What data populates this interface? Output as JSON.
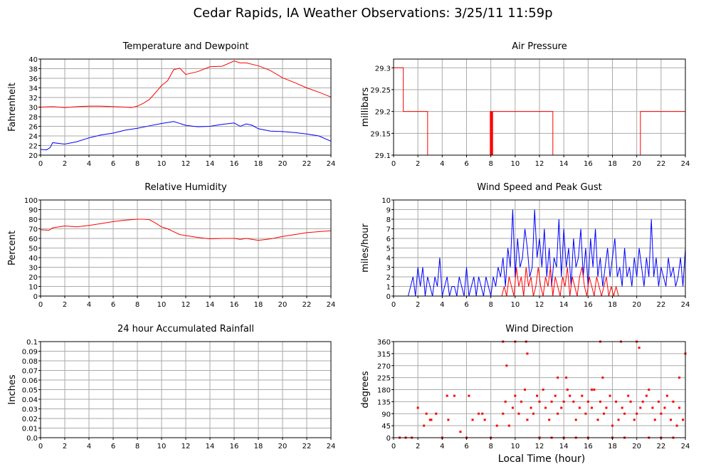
{
  "page": {
    "title": "Cedar Rapids, IA Weather Observations: 3/25/11 11:59p",
    "x_axis_label": "Local Time (hour)"
  },
  "colors": {
    "red": "#ff0000",
    "blue": "#0000ff",
    "grid": "#aaaaaa",
    "axis": "#000000"
  },
  "chart_data": [
    {
      "id": "temp",
      "type": "line",
      "title": "Temperature and Dewpoint",
      "ylabel": "Fahrenheit",
      "xlim": [
        0,
        24
      ],
      "ylim": [
        20,
        40
      ],
      "xticks": [
        0,
        2,
        4,
        6,
        8,
        10,
        12,
        14,
        16,
        18,
        20,
        22,
        24
      ],
      "yticks": [
        20,
        22,
        24,
        26,
        28,
        30,
        32,
        34,
        36,
        38,
        40
      ],
      "grid": true,
      "series": [
        {
          "color": "red",
          "x": [
            0,
            1,
            2,
            3,
            4,
            5,
            6,
            7,
            7.5,
            8,
            8.5,
            9,
            9.5,
            10,
            10.5,
            11,
            11.5,
            12,
            13,
            14,
            15,
            16,
            16.5,
            17,
            18,
            19,
            20,
            21,
            22,
            23,
            24
          ],
          "y": [
            30,
            30.1,
            29.9,
            30.1,
            30.2,
            30.2,
            30.1,
            30,
            29.9,
            30.2,
            30.8,
            31.6,
            33,
            34.5,
            35.5,
            37.8,
            38.1,
            36.8,
            37.4,
            38.4,
            38.5,
            39.6,
            39.2,
            39.2,
            38.6,
            37.6,
            36.1,
            35.1,
            34,
            33.1,
            32.1
          ]
        },
        {
          "color": "blue",
          "x": [
            0,
            0.5,
            0.8,
            1,
            2,
            3,
            4,
            5,
            6,
            7,
            8,
            9,
            10,
            10.5,
            11,
            11.5,
            12,
            13,
            14,
            15,
            16,
            16.5,
            17,
            17.5,
            18,
            19,
            20,
            21,
            22,
            23,
            24
          ],
          "y": [
            21.2,
            21.1,
            21.6,
            22.6,
            22.3,
            22.8,
            23.6,
            24.2,
            24.6,
            25.2,
            25.6,
            26.1,
            26.6,
            26.8,
            27,
            26.6,
            26.2,
            25.9,
            26,
            26.4,
            26.7,
            26,
            26.5,
            26.2,
            25.5,
            25,
            24.9,
            24.7,
            24.4,
            24,
            22.9
          ]
        }
      ]
    },
    {
      "id": "pressure",
      "type": "line",
      "title": "Air Pressure",
      "ylabel": "millibars",
      "xlim": [
        0,
        24
      ],
      "ylim": [
        29.1,
        29.32
      ],
      "xticks": [
        0,
        2,
        4,
        6,
        8,
        10,
        12,
        14,
        16,
        18,
        20,
        22,
        24
      ],
      "yticks": [
        29.1,
        29.15,
        29.2,
        29.25,
        29.3
      ],
      "ytick_labels": [
        "29.1",
        "29.15",
        "29.2",
        "29.25",
        "29.3"
      ],
      "grid": true,
      "series": [
        {
          "color": "red",
          "step": true,
          "x": [
            0,
            0.8,
            0.8,
            2.8,
            2.8,
            7.95,
            7.95,
            8.0,
            8.0,
            8.05,
            8.05,
            8.1,
            8.1,
            8.15,
            8.15,
            13.1,
            13.1,
            13.2,
            13.2,
            20.3,
            20.3,
            24
          ],
          "y": [
            29.3,
            29.3,
            29.2,
            29.2,
            29.1,
            29.1,
            29.2,
            29.2,
            29.1,
            29.1,
            29.2,
            29.2,
            29.1,
            29.1,
            29.2,
            29.2,
            29.1,
            29.1,
            29.1,
            29.1,
            29.2,
            29.2
          ]
        }
      ]
    },
    {
      "id": "rh",
      "type": "line",
      "title": "Relative Humidity",
      "ylabel": "Percent",
      "xlim": [
        0,
        24
      ],
      "ylim": [
        0,
        100
      ],
      "xticks": [
        0,
        2,
        4,
        6,
        8,
        10,
        12,
        14,
        16,
        18,
        20,
        22,
        24
      ],
      "yticks": [
        0,
        10,
        20,
        30,
        40,
        50,
        60,
        70,
        80,
        90,
        100
      ],
      "grid": true,
      "series": [
        {
          "color": "red",
          "x": [
            0,
            0.7,
            1,
            2,
            3,
            4,
            5,
            6,
            7,
            8,
            8.5,
            9,
            9.5,
            10,
            10.5,
            11,
            11.5,
            12,
            13,
            14,
            15,
            16,
            16.5,
            17,
            18,
            19,
            20,
            21,
            22,
            23,
            24
          ],
          "y": [
            69,
            68.5,
            71,
            73,
            72,
            73.5,
            75.5,
            77.5,
            79,
            80,
            80,
            79.5,
            76,
            72,
            70,
            67,
            64,
            63,
            61,
            59.5,
            60,
            60,
            59,
            60,
            58,
            59.5,
            62,
            64,
            66,
            67,
            68
          ]
        }
      ]
    },
    {
      "id": "wind",
      "type": "line",
      "title": "Wind Speed and Peak Gust",
      "ylabel": "miles/hour",
      "xlim": [
        0,
        24
      ],
      "ylim": [
        0,
        10
      ],
      "xticks": [
        0,
        2,
        4,
        6,
        8,
        10,
        12,
        14,
        16,
        18,
        20,
        22,
        24
      ],
      "yticks": [
        0,
        1,
        2,
        3,
        4,
        5,
        6,
        7,
        8,
        9,
        10
      ],
      "grid": true,
      "series": [
        {
          "color": "blue",
          "x": [
            0,
            1.2,
            1.4,
            1.6,
            1.8,
            2.0,
            2.2,
            2.4,
            2.6,
            2.8,
            3.0,
            3.2,
            3.4,
            3.6,
            3.8,
            4.0,
            4.2,
            4.4,
            4.6,
            4.8,
            5.0,
            5.2,
            5.4,
            5.6,
            5.8,
            6.0,
            6.2,
            6.4,
            6.6,
            6.8,
            7.0,
            7.2,
            7.4,
            7.6,
            7.8,
            8.0,
            8.2,
            8.4,
            8.6,
            8.8,
            9.0,
            9.2,
            9.4,
            9.6,
            9.8,
            10.0,
            10.2,
            10.4,
            10.6,
            10.8,
            11.0,
            11.2,
            11.4,
            11.6,
            11.8,
            12.0,
            12.2,
            12.4,
            12.6,
            12.8,
            13.0,
            13.2,
            13.4,
            13.6,
            13.8,
            14.0,
            14.2,
            14.4,
            14.6,
            14.8,
            15.0,
            15.2,
            15.4,
            15.6,
            15.8,
            16.0,
            16.2,
            16.4,
            16.6,
            16.8,
            17.0,
            17.2,
            17.4,
            17.6,
            17.8,
            18.0,
            18.2,
            18.4,
            18.6,
            18.8,
            19.0,
            19.2,
            19.4,
            19.6,
            19.8,
            20.0,
            20.2,
            20.4,
            20.6,
            20.8,
            21.0,
            21.2,
            21.4,
            21.6,
            21.8,
            22.0,
            22.2,
            22.4,
            22.6,
            22.8,
            23.0,
            23.2,
            23.4,
            23.6,
            23.8,
            24.0
          ],
          "y": [
            0,
            0,
            1,
            2,
            0,
            3,
            1,
            3,
            0,
            2,
            1,
            0,
            2,
            1,
            4,
            0,
            1,
            2,
            0,
            1,
            1,
            0,
            2,
            1,
            0,
            3,
            0,
            1,
            2,
            0,
            2,
            1,
            0,
            2,
            1,
            0,
            2,
            1,
            3,
            2,
            4,
            1,
            5,
            3,
            9,
            2,
            6,
            3,
            4,
            7,
            5,
            2,
            3,
            9,
            4,
            6,
            3,
            7,
            2,
            5,
            1,
            4,
            3,
            8,
            2,
            7,
            3,
            5,
            1,
            6,
            3,
            4,
            7,
            2,
            5,
            1,
            6,
            3,
            7,
            2,
            4,
            1,
            3,
            5,
            2,
            4,
            6,
            2,
            3,
            1,
            5,
            2,
            3,
            1,
            4,
            2,
            5,
            3,
            1,
            4,
            2,
            8,
            2,
            4,
            1,
            3,
            2,
            1,
            4,
            2,
            3,
            1,
            2,
            4,
            1,
            5
          ]
        },
        {
          "color": "red",
          "x": [
            0,
            8.9,
            9.1,
            9.3,
            9.5,
            9.7,
            9.9,
            10.1,
            10.3,
            10.5,
            10.7,
            10.9,
            11.1,
            11.3,
            11.5,
            11.7,
            11.9,
            12.1,
            12.3,
            12.5,
            12.7,
            12.9,
            13.1,
            13.3,
            13.5,
            13.7,
            13.9,
            14.1,
            14.3,
            14.5,
            14.7,
            14.9,
            15.1,
            15.3,
            15.5,
            15.7,
            15.9,
            16.1,
            16.3,
            16.5,
            16.7,
            16.9,
            17.1,
            17.3,
            17.5,
            17.7,
            17.9,
            18.1,
            18.3,
            18.5,
            24.0
          ],
          "y": [
            0,
            0,
            1,
            0,
            2,
            1,
            0,
            3,
            1,
            2,
            0,
            3,
            1,
            2,
            0,
            1,
            3,
            1,
            0,
            2,
            1,
            3,
            0,
            2,
            1,
            0,
            2,
            1,
            3,
            0,
            2,
            1,
            0,
            2,
            3,
            1,
            0,
            2,
            1,
            0,
            2,
            1,
            0,
            1,
            2,
            0,
            1,
            0,
            1,
            0,
            0
          ]
        }
      ]
    },
    {
      "id": "rain",
      "type": "line",
      "title": "24 hour Accumulated Rainfall",
      "ylabel": "Inches",
      "xlim": [
        0,
        24
      ],
      "ylim": [
        0,
        0.1
      ],
      "xticks": [
        0,
        2,
        4,
        6,
        8,
        10,
        12,
        14,
        16,
        18,
        20,
        22,
        24
      ],
      "yticks": [
        0,
        0.01,
        0.02,
        0.03,
        0.04,
        0.05,
        0.06,
        0.07,
        0.08,
        0.09,
        0.1
      ],
      "ytick_labels": [
        "0.0",
        "0.01",
        "0.02",
        "0.03",
        "0.04",
        "0.05",
        "0.06",
        "0.07",
        "0.08",
        "0.09",
        "0.1"
      ],
      "grid": true,
      "series": [
        {
          "color": "red",
          "x": [
            0,
            24
          ],
          "y": [
            0,
            0
          ]
        }
      ]
    },
    {
      "id": "dir",
      "type": "scatter",
      "title": "Wind Direction",
      "ylabel": "degrees",
      "xlim": [
        0,
        24
      ],
      "ylim": [
        0,
        360
      ],
      "xticks": [
        0,
        2,
        4,
        6,
        8,
        10,
        12,
        14,
        16,
        18,
        20,
        22,
        24
      ],
      "yticks": [
        0,
        45,
        90,
        135,
        180,
        225,
        270,
        315,
        360
      ],
      "grid": true,
      "series": [
        {
          "color": "red",
          "x": [
            0.5,
            1.0,
            1.5,
            2.0,
            2.5,
            3.0,
            3.5,
            4.0,
            4.5,
            5.0,
            5.5,
            6.0,
            6.5,
            7.0,
            7.5,
            8.0,
            8.5,
            9.0,
            9.2,
            9.5,
            9.8,
            10.0,
            10.3,
            10.5,
            10.8,
            11.0,
            11.3,
            11.5,
            11.8,
            12.0,
            12.3,
            12.5,
            12.8,
            13.0,
            13.3,
            13.5,
            13.8,
            14.0,
            14.3,
            14.5,
            14.8,
            15.0,
            15.3,
            15.5,
            15.8,
            16.0,
            16.3,
            16.5,
            16.8,
            17.0,
            17.3,
            17.5,
            17.8,
            18.0,
            18.3,
            18.5,
            18.8,
            19.0,
            19.3,
            19.5,
            19.8,
            20.0,
            20.3,
            20.5,
            20.8,
            21.0,
            21.3,
            21.5,
            21.8,
            22.0,
            22.3,
            22.5,
            22.8,
            23.0,
            23.3,
            23.5,
            23.8,
            24.0,
            9.0,
            10.0,
            11.0,
            12.0,
            13.0,
            14.0,
            15.0,
            16.0,
            17.0,
            18.0,
            19.0,
            20.0,
            21.0,
            22.0,
            23.0,
            14.2,
            17.2,
            9.3,
            16.3,
            18.7,
            20.2,
            23.5,
            10.9,
            2.7,
            3.1,
            4.4,
            6.2,
            7.3,
            13.5
          ],
          "y": [
            0,
            0,
            0,
            112,
            45,
            67,
            90,
            0,
            67,
            157,
            22,
            0,
            67,
            90,
            67,
            0,
            45,
            90,
            135,
            45,
            112,
            157,
            90,
            135,
            180,
            67,
            112,
            90,
            157,
            135,
            180,
            112,
            67,
            135,
            157,
            90,
            112,
            135,
            180,
            157,
            135,
            67,
            112,
            157,
            90,
            135,
            112,
            180,
            67,
            135,
            90,
            112,
            157,
            45,
            135,
            67,
            112,
            90,
            157,
            135,
            67,
            90,
            112,
            135,
            157,
            180,
            112,
            67,
            135,
            90,
            112,
            157,
            67,
            135,
            45,
            112,
            67,
            315,
            360,
            360,
            315,
            0,
            0,
            0,
            0,
            0,
            360,
            0,
            0,
            360,
            0,
            0,
            0,
            225,
            225,
            270,
            180,
            360,
            337,
            225,
            360,
            90,
            67,
            157,
            157,
            90,
            225
          ]
        }
      ]
    }
  ]
}
